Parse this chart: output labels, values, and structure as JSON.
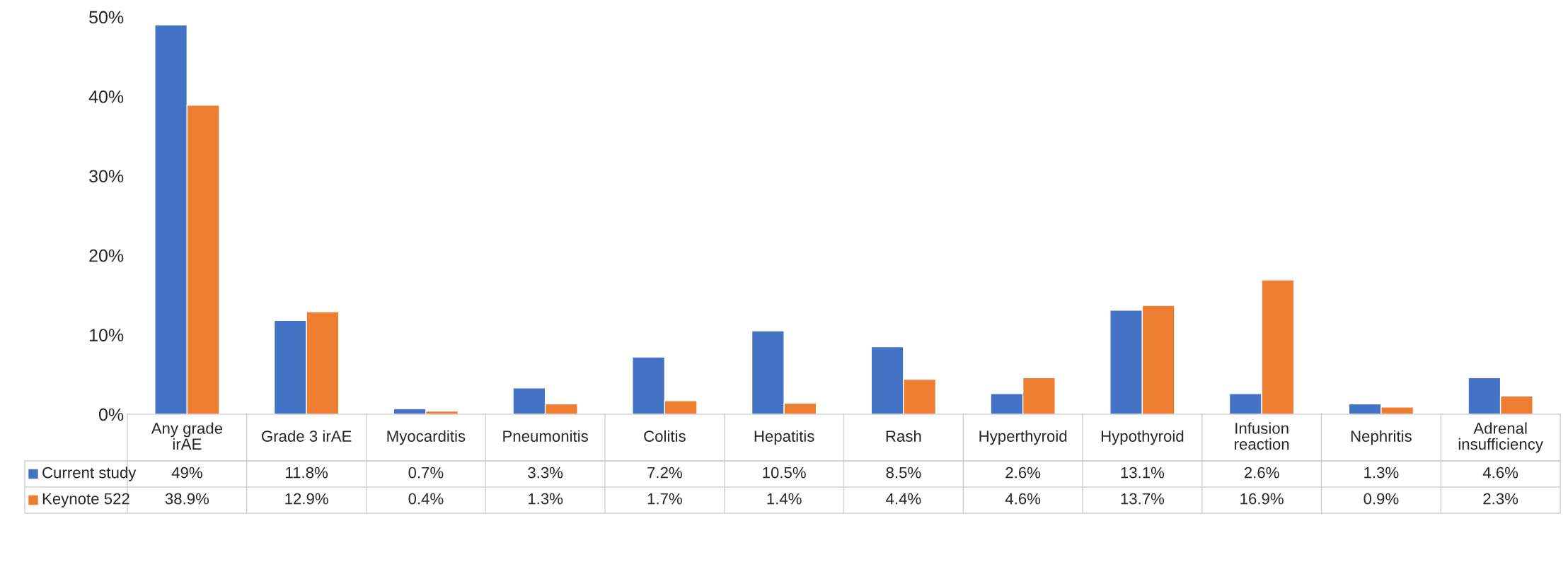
{
  "chart_data": {
    "type": "bar",
    "categories": [
      "Any grade irAE",
      "Grade 3 irAE",
      "Myocarditis",
      "Pneumonitis",
      "Colitis",
      "Hepatitis",
      "Rash",
      "Hyperthyroid",
      "Hypothyroid",
      "Infusion reaction",
      "Nephritis",
      "Adrenal insufficiency"
    ],
    "series": [
      {
        "name": "Current study",
        "color": "#4472c4",
        "values": [
          49,
          11.8,
          0.7,
          3.3,
          7.2,
          10.5,
          8.5,
          2.6,
          13.1,
          2.6,
          1.3,
          4.6
        ],
        "value_labels": [
          "49%",
          "11.8%",
          "0.7%",
          "3.3%",
          "7.2%",
          "10.5%",
          "8.5%",
          "2.6%",
          "13.1%",
          "2.6%",
          "1.3%",
          "4.6%"
        ]
      },
      {
        "name": "Keynote 522",
        "color": "#ed7d31",
        "values": [
          38.9,
          12.9,
          0.4,
          1.3,
          1.7,
          1.4,
          4.4,
          4.6,
          13.7,
          16.9,
          0.9,
          2.3
        ],
        "value_labels": [
          "38.9%",
          "12.9%",
          "0.4%",
          "1.3%",
          "1.7%",
          "1.4%",
          "4.4%",
          "4.6%",
          "13.7%",
          "16.9%",
          "0.9%",
          "2.3%"
        ]
      }
    ],
    "ylim": [
      0,
      50
    ],
    "yticks": [
      {
        "value": 0,
        "label": "0%"
      },
      {
        "value": 10,
        "label": "10%"
      },
      {
        "value": 20,
        "label": "20%"
      },
      {
        "value": 30,
        "label": "30%"
      },
      {
        "value": 40,
        "label": "40%"
      },
      {
        "value": 50,
        "label": "50%"
      }
    ],
    "grid": false,
    "legend": "bottom"
  }
}
